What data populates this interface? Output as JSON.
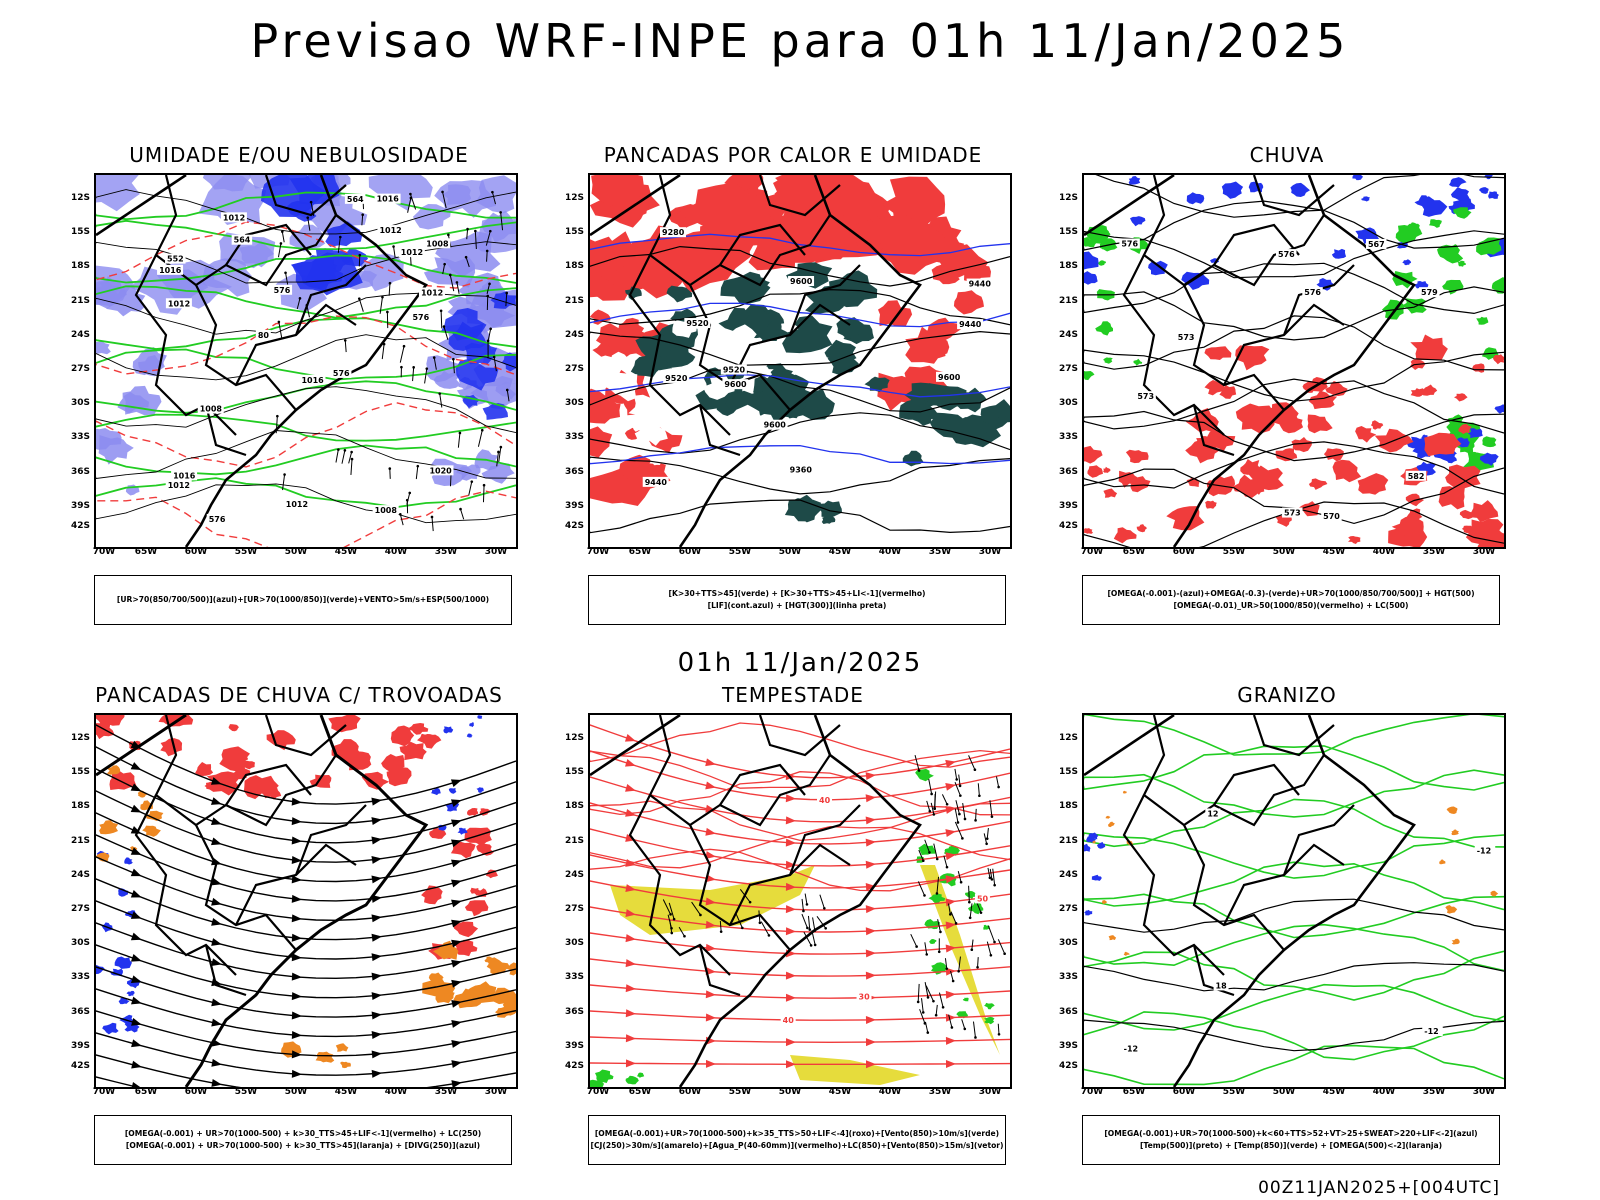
{
  "title": "Previsao WRF-INPE  para 01h 11/Jan/2025",
  "mid_title": "01h 11/Jan/2025",
  "footer": "00Z11JAN2025+[004UTC]",
  "lat_labels": [
    "12S",
    "15S",
    "18S",
    "21S",
    "24S",
    "27S",
    "30S",
    "33S",
    "36S",
    "39S",
    "42S"
  ],
  "lon_labels": [
    "70W",
    "65W",
    "60W",
    "55W",
    "50W",
    "45W",
    "40W",
    "35W",
    "30W"
  ],
  "colors": {
    "red": "#f03c3c",
    "green": "#22cc22",
    "blue": "#2233ee",
    "lavender": "#8c8cf0",
    "darkteal": "#1e4a48",
    "yellow": "#e6dc3c",
    "orange": "#ee8822"
  },
  "panels": [
    {
      "title": "UMIDADE E/OU NEBULOSIDADE",
      "legend": [
        "[UR>70(850/700/500)](azul)+[UR>70(1000/850)](verde)+VENTO>5m/s+ESP(500/1000)"
      ],
      "contour_labels": [
        "1012",
        "1012",
        "1008",
        "1016",
        "1008",
        "1012",
        "1020",
        "1016",
        "1012",
        "1012",
        "1016",
        "1016",
        "1008",
        "1012",
        "1012",
        "576",
        "576",
        "564",
        "552",
        "576",
        "564",
        "576",
        "80"
      ]
    },
    {
      "title": "PANCADAS POR CALOR E UMIDADE",
      "legend": [
        "[K>30+TTS>45](verde) + [K>30+TTS>45+LI<-1](vermelho)",
        "[LIF](cont.azul) + [HGT(300)](linha preta)"
      ],
      "contour_labels": [
        "9600",
        "9600",
        "9600",
        "9600",
        "9520",
        "9520",
        "9520",
        "9440",
        "9440",
        "9440",
        "9360",
        "9280"
      ]
    },
    {
      "title": "CHUVA",
      "legend": [
        "[OMEGA(-0.001)-(azul)+OMEGA(-0.3)-(verde)+UR>70(1000/850/700/500)] + HGT(500)",
        "[OMEGA(-0.01)_UR>50(1000/850)(vermelho) + LC(500)"
      ],
      "contour_labels": [
        "576",
        "582",
        "576",
        "579",
        "573",
        "576",
        "570",
        "567",
        "573",
        "573"
      ]
    },
    {
      "title": "PANCADAS DE CHUVA C/ TROVOADAS",
      "legend": [
        "[OMEGA(-0.001) + UR>70(1000-500) + k>30_TTS>45+LIF<-1](vermelho) + LC(250)",
        "[OMEGA(-0.001) + UR>70(1000-500) + k>30_TTS>45](laranja) + [DIVG(250)](azul)"
      ],
      "contour_labels": []
    },
    {
      "title": "TEMPESTADE",
      "legend": [
        "[OMEGA(-0.001)+UR>70(1000-500)+k>35_TTS>50+LIF<-4](roxo)+[Vento(850)>10m/s](verde)",
        "[CJ(250)>30m/s](amarelo)+[Agua_P(40-60mm)](vermelho)+LC(850)+[Vento(850)>15m/s](vetor)"
      ],
      "contour_labels": [
        "50",
        "40",
        "40",
        "30"
      ]
    },
    {
      "title": "GRANIZO",
      "legend": [
        "[OMEGA(-0.001)+UR>70(1000-500)+k<60+TTS>52+VT>25+SWEAT>220+LIF<-2](azul)",
        "[Temp(500)](preto) + [Temp(850)](verde) + [OMEGA(500)<-2](laranja)"
      ],
      "contour_labels": [
        "-12",
        "-12",
        "12",
        "18",
        "-12"
      ]
    }
  ]
}
